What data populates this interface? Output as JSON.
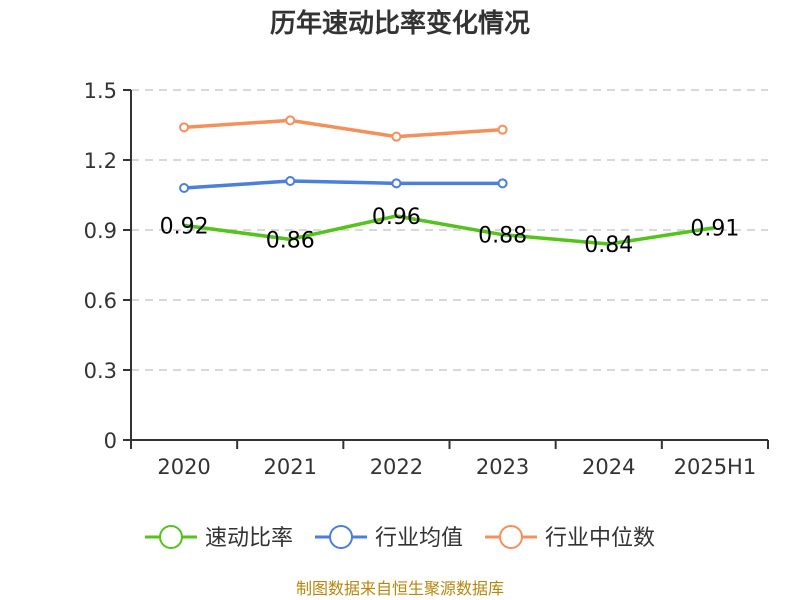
{
  "chart_data": {
    "type": "line",
    "title": "历年速动比率变化情况",
    "categories": [
      "2020",
      "2021",
      "2022",
      "2023",
      "2024",
      "2025H1"
    ],
    "ylim": [
      0,
      1.5
    ],
    "yticks": [
      "0",
      "0.3",
      "0.6",
      "0.9",
      "1.2",
      "1.5"
    ],
    "ytick_values": [
      0,
      0.3,
      0.6,
      0.9,
      1.2,
      1.5
    ],
    "grid": true,
    "legend_position": "bottom",
    "series": [
      {
        "name": "速动比率",
        "color": "#52c41a",
        "values": [
          0.92,
          0.86,
          0.96,
          0.88,
          0.84,
          0.91
        ],
        "labels": [
          "0.92",
          "0.86",
          "0.96",
          "0.88",
          "0.84",
          "0.91"
        ],
        "markers": false
      },
      {
        "name": "行业均值",
        "color": "#4a7fdc",
        "values": [
          1.08,
          1.11,
          1.1,
          1.1,
          null,
          null
        ],
        "markers": true
      },
      {
        "name": "行业中位数",
        "color": "#f5905a",
        "values": [
          1.34,
          1.37,
          1.3,
          1.33,
          null,
          null
        ],
        "markers": true
      }
    ]
  },
  "source": "制图数据来自恒生聚源数据库"
}
